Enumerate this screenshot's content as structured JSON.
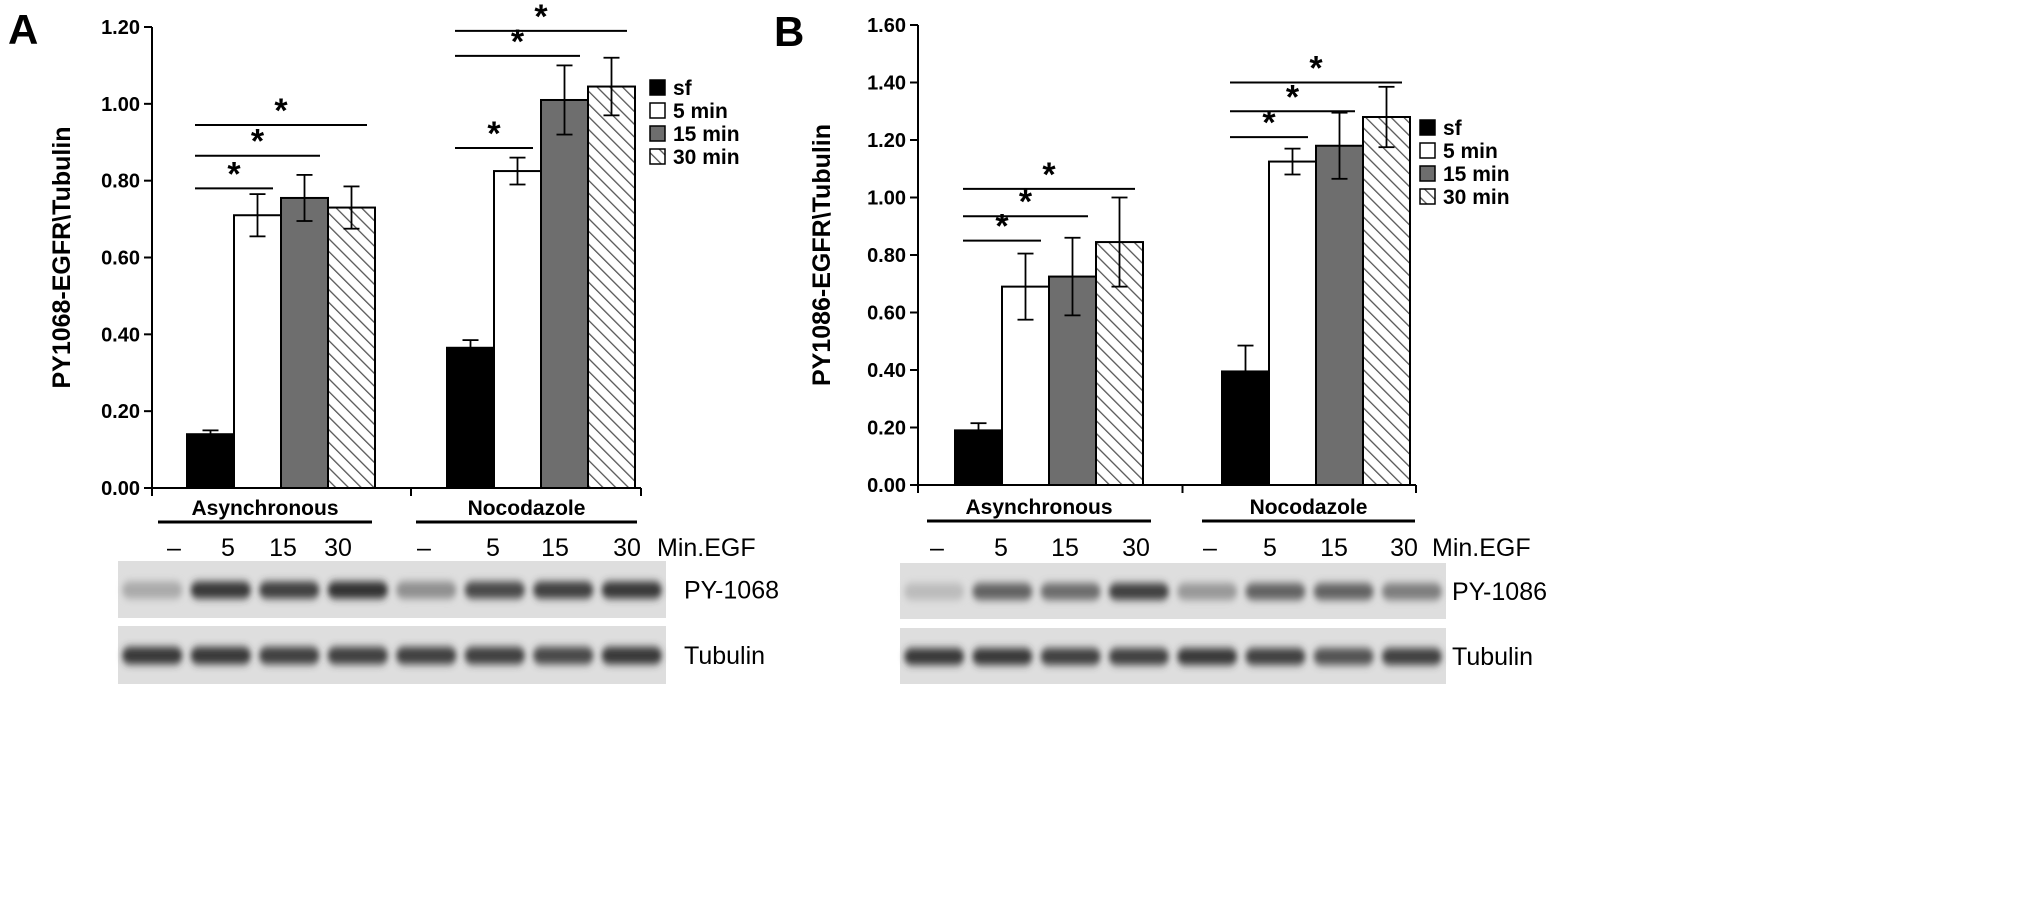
{
  "chart_data": [
    {
      "type": "bar",
      "panel_label": "A",
      "ylabel": "PY1068-EGFR\\Tubulin",
      "ylim": [
        0,
        1.2
      ],
      "yticks": [
        "0.00",
        "0.20",
        "0.40",
        "0.60",
        "0.80",
        "1.00",
        "1.20"
      ],
      "categories": [
        "Asynchronous",
        "Nocodazole"
      ],
      "series": [
        {
          "name": "sf",
          "values": [
            0.14,
            0.365
          ],
          "errors": [
            0.01,
            0.02
          ],
          "fill": "#000000"
        },
        {
          "name": "5 min",
          "values": [
            0.71,
            0.825
          ],
          "errors": [
            0.055,
            0.035
          ],
          "fill": "#ffffff"
        },
        {
          "name": "15 min",
          "values": [
            0.755,
            1.01
          ],
          "errors": [
            0.06,
            0.09
          ],
          "fill": "#6e6e6e"
        },
        {
          "name": "30 min",
          "values": [
            0.73,
            1.045
          ],
          "errors": [
            0.055,
            0.075
          ],
          "fill": "hatch"
        }
      ],
      "significance": [
        {
          "group": 0,
          "from": 0,
          "to": 1,
          "label": "*",
          "level": 0.78
        },
        {
          "group": 0,
          "from": 0,
          "to": 2,
          "label": "*",
          "level": 0.865
        },
        {
          "group": 0,
          "from": 0,
          "to": 3,
          "label": "*",
          "level": 0.945
        },
        {
          "group": 1,
          "from": 0,
          "to": 1,
          "label": "*",
          "level": 0.885
        },
        {
          "group": 1,
          "from": 0,
          "to": 2,
          "label": "*",
          "level": 1.125
        },
        {
          "group": 1,
          "from": 0,
          "to": 3,
          "label": "*",
          "level": 1.19
        }
      ],
      "legend_position": "top-right",
      "blot": {
        "lanes": [
          "–",
          "5",
          "15",
          "30",
          "–",
          "5",
          "15",
          "30"
        ],
        "lane_header": "Min.EGF",
        "rows": [
          {
            "label": "PY-1068",
            "intensity": [
              0.2,
              0.85,
              0.8,
              0.9,
              0.35,
              0.75,
              0.8,
              0.85
            ]
          },
          {
            "label": "Tubulin",
            "intensity": [
              0.85,
              0.85,
              0.8,
              0.8,
              0.8,
              0.8,
              0.75,
              0.85
            ]
          }
        ]
      }
    },
    {
      "type": "bar",
      "panel_label": "B",
      "ylabel": "PY1086-EGFR\\Tubulin",
      "ylim": [
        0,
        1.6
      ],
      "yticks": [
        "0.00",
        "0.20",
        "0.40",
        "0.60",
        "0.80",
        "1.00",
        "1.20",
        "1.40",
        "1.60"
      ],
      "categories": [
        "Asynchronous",
        "Nocodazole"
      ],
      "series": [
        {
          "name": "sf",
          "values": [
            0.19,
            0.395
          ],
          "errors": [
            0.025,
            0.09
          ],
          "fill": "#000000"
        },
        {
          "name": "5 min",
          "values": [
            0.69,
            1.125
          ],
          "errors": [
            0.115,
            0.045
          ],
          "fill": "#ffffff"
        },
        {
          "name": "15 min",
          "values": [
            0.725,
            1.18
          ],
          "errors": [
            0.135,
            0.115
          ],
          "fill": "#6e6e6e"
        },
        {
          "name": "30 min",
          "values": [
            0.845,
            1.28
          ],
          "errors": [
            0.155,
            0.105
          ],
          "fill": "hatch"
        }
      ],
      "significance": [
        {
          "group": 0,
          "from": 0,
          "to": 1,
          "label": "*",
          "level": 0.85
        },
        {
          "group": 0,
          "from": 0,
          "to": 2,
          "label": "*",
          "level": 0.935
        },
        {
          "group": 0,
          "from": 0,
          "to": 3,
          "label": "*",
          "level": 1.03
        },
        {
          "group": 1,
          "from": 0,
          "to": 1,
          "label": "*",
          "level": 1.21
        },
        {
          "group": 1,
          "from": 0,
          "to": 2,
          "label": "*",
          "level": 1.3
        },
        {
          "group": 1,
          "from": 0,
          "to": 3,
          "label": "*",
          "level": 1.4
        }
      ],
      "legend_position": "top-right",
      "blot": {
        "lanes": [
          "–",
          "5",
          "15",
          "30",
          "–",
          "5",
          "15",
          "30"
        ],
        "lane_header": "Min.EGF",
        "rows": [
          {
            "label": "PY-1086",
            "intensity": [
              0.1,
              0.6,
              0.55,
              0.8,
              0.3,
              0.6,
              0.6,
              0.45
            ]
          },
          {
            "label": "Tubulin",
            "intensity": [
              0.85,
              0.85,
              0.8,
              0.8,
              0.85,
              0.8,
              0.7,
              0.8
            ]
          }
        ]
      }
    }
  ]
}
